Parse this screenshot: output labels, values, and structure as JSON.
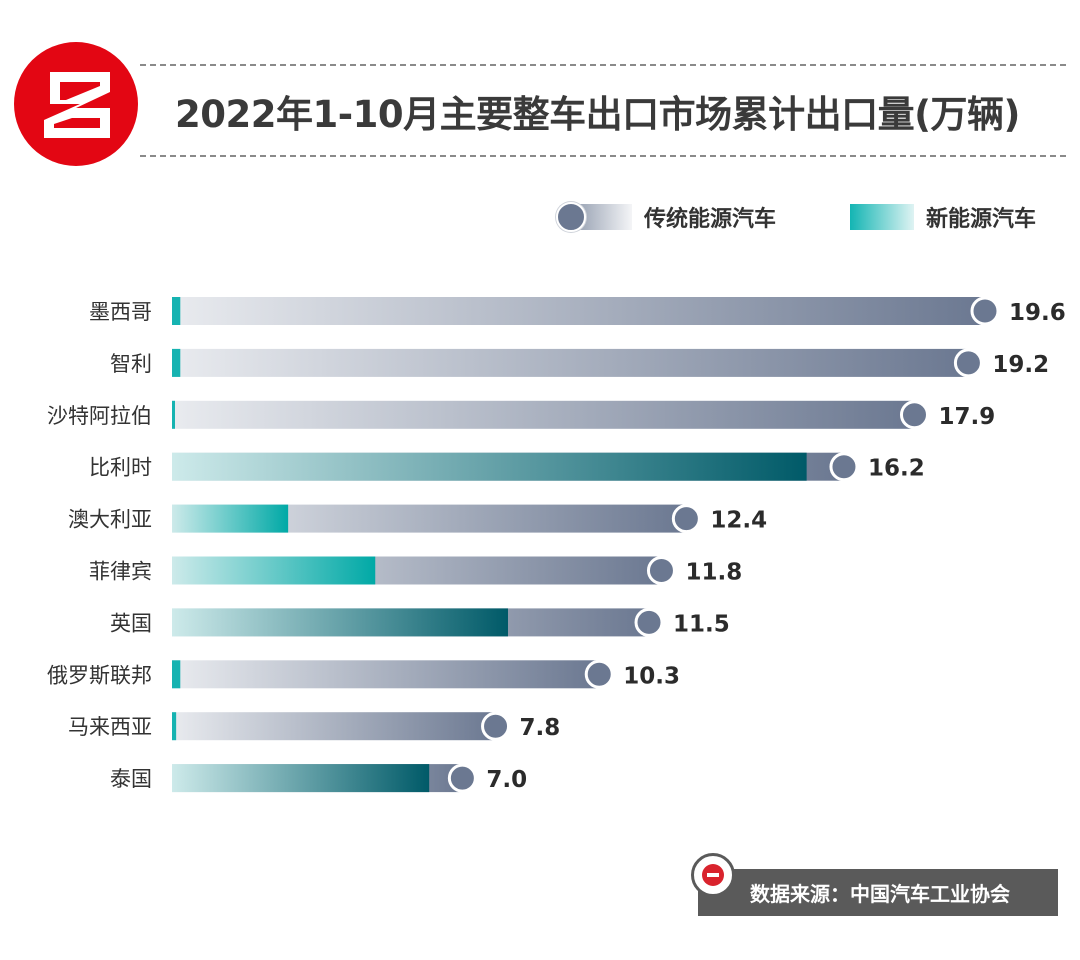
{
  "title": "2022年1-10月主要整车出口市场累计出口量(万辆)",
  "legend": {
    "traditional": "传统能源汽车",
    "nev": "新能源汽车"
  },
  "source": "数据来源：中国汽车工业协会",
  "colors": {
    "brand_red": "#e30613",
    "traditional_light": "#e8eaee",
    "traditional_dark": "#6b7891",
    "nev_light": "#cdeaea",
    "nev_dark": "#00a7a5",
    "nev_deep": "#005f6b",
    "source_bg": "#5a5a5a"
  },
  "chart_data": {
    "type": "bar",
    "orientation": "horizontal",
    "stacked": true,
    "categories": [
      "墨西哥",
      "智利",
      "沙特阿拉伯",
      "比利时",
      "澳大利亚",
      "菲律宾",
      "英国",
      "俄罗斯联邦",
      "马来西亚",
      "泰国"
    ],
    "totals": [
      19.6,
      19.2,
      17.9,
      16.2,
      12.4,
      11.8,
      11.5,
      10.3,
      7.8,
      7.0
    ],
    "total_labels": [
      "19.6",
      "19.2",
      "17.9",
      "16.2",
      "12.4",
      "11.8",
      "11.5",
      "10.3",
      "7.8",
      "7.0"
    ],
    "series": [
      {
        "name": "新能源汽车",
        "values": [
          0.2,
          0.2,
          0.05,
          15.3,
          2.8,
          4.9,
          8.1,
          0.2,
          0.1,
          6.2
        ]
      },
      {
        "name": "传统能源汽车",
        "values": [
          19.4,
          19.0,
          17.85,
          0.9,
          9.6,
          6.9,
          3.4,
          10.1,
          7.7,
          0.8
        ]
      }
    ],
    "xlim": [
      0,
      19.6
    ],
    "grid": false,
    "legend_position": "top-right"
  }
}
